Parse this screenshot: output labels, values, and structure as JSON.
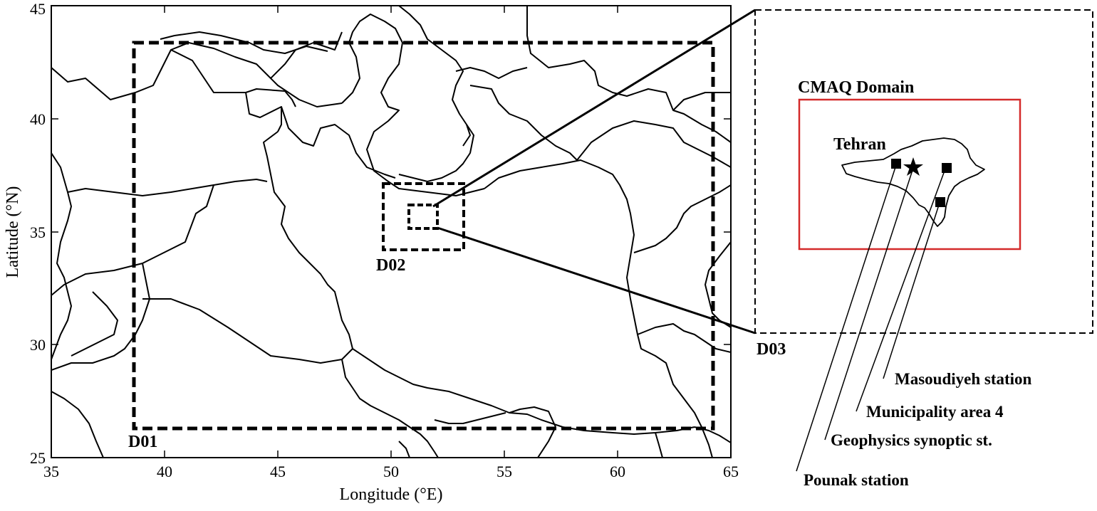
{
  "map": {
    "x_axis": {
      "label": "Longitude (°E)",
      "ticks": [
        "35",
        "40",
        "45",
        "50",
        "55",
        "60",
        "65"
      ]
    },
    "y_axis": {
      "label": "Latitude (°N)",
      "ticks": [
        "25",
        "30",
        "35",
        "40",
        "45"
      ]
    },
    "domains": {
      "d01": "D01",
      "d02": "D02",
      "d03": "D03"
    }
  },
  "inset": {
    "cmaq_label": "CMAQ Domain",
    "city_label": "Tehran",
    "cmaq_color": "#d42a2a",
    "stations": [
      {
        "name": "Masoudiyeh station",
        "marker": "square"
      },
      {
        "name": "Municipality area 4",
        "marker": "square"
      },
      {
        "name": "Geophysics synoptic st.",
        "marker": "star"
      },
      {
        "name": "Pounak station",
        "marker": "square"
      }
    ]
  }
}
